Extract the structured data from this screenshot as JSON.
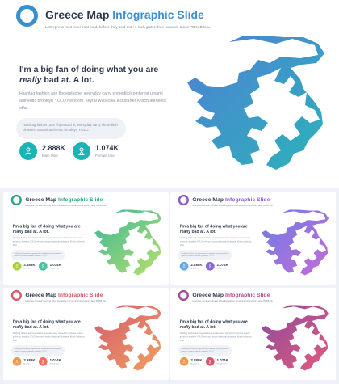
{
  "title_plain": "Greece Map ",
  "title_accent": "Infographic Slide",
  "subtitle": "Letterpress next level trust fund, before they sold out +1 meh gluten-free locavore tacos PBR&B tofu.",
  "headline_line1": "I'm a big fan of doing what you are",
  "headline_em": "really",
  "headline_line2": " bad at. A lot.",
  "body": "Hashtag fashion axe fingerstache, everyday carry shoreditch pinterest umami authentic brooklyn YOLO heirloom. keytar waistcoat kickstarter Kitsch authentic offal.",
  "pill_text": "Hashtag fashion axe fingerstache, everyday carry shoreditch pinterest umami authentic brooklyn YOLO.",
  "stats": [
    {
      "value": "2.888K",
      "label": "Male User",
      "icon": "male-icon"
    },
    {
      "value": "1.074K",
      "label": "Female User",
      "icon": "female-icon"
    }
  ],
  "themes": [
    {
      "name": "blue",
      "ring": "#3a8fcf",
      "accent": "#3f8fd0",
      "grad1": "#4f7fd6",
      "grad2": "#2bb3b8",
      "icon1": "#1ab3b6",
      "icon2": "#1ab3b6"
    },
    {
      "name": "green",
      "ring": "#2ea87c",
      "accent": "#2ea87c",
      "grad1": "#39b79a",
      "grad2": "#b8e06a",
      "icon1": "#a7cf3e",
      "icon2": "#4ec1a0"
    },
    {
      "name": "purple",
      "ring": "#8a5ad0",
      "accent": "#8c5fd6",
      "grad1": "#6a7ee6",
      "grad2": "#c66ad8",
      "icon1": "#67a8e8",
      "icon2": "#8a6ad8"
    },
    {
      "name": "coral",
      "ring": "#d65b6b",
      "accent": "#d65b6b",
      "grad1": "#d55a6e",
      "grad2": "#f0a060",
      "icon1": "#ef9a4f",
      "icon2": "#ee7060"
    },
    {
      "name": "magenta",
      "ring": "#a34b96",
      "accent": "#b84d8e",
      "grad1": "#8c4aa0",
      "grad2": "#e35a7a",
      "icon1": "#ef9a4f",
      "icon2": "#d55a6e"
    }
  ]
}
